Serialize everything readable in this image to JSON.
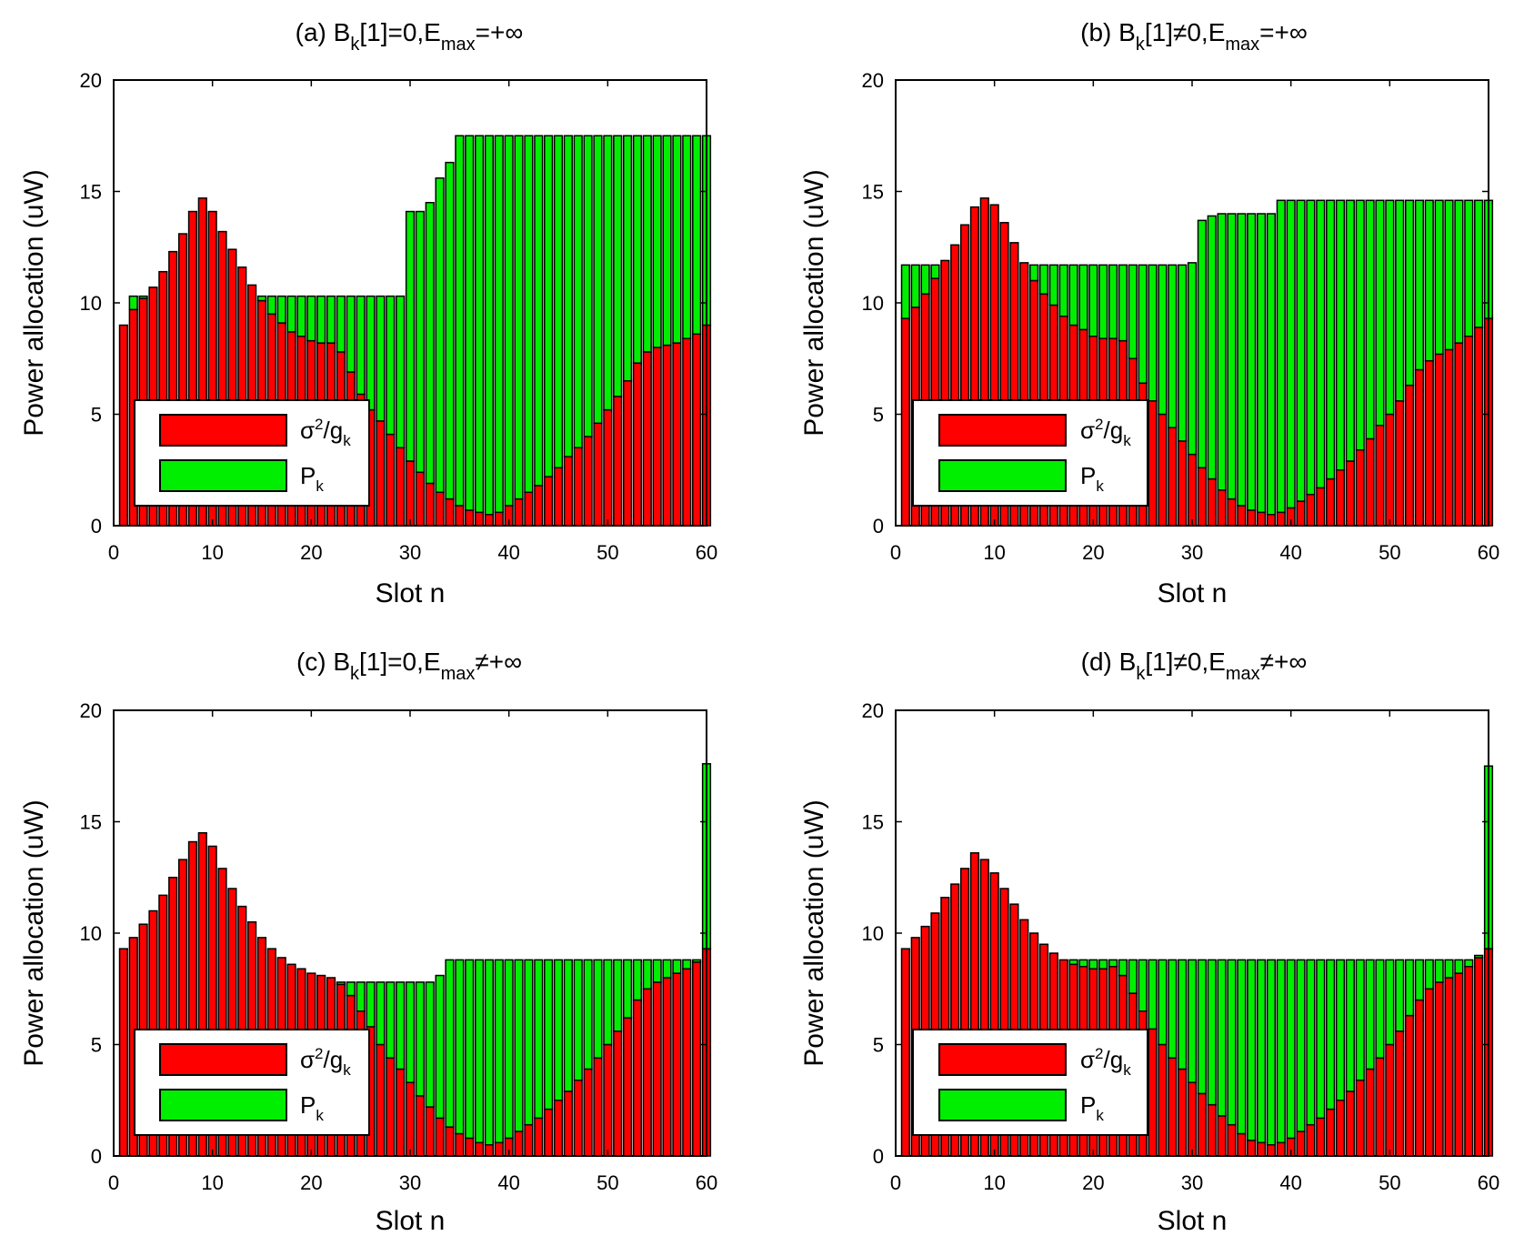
{
  "figure": {
    "panels": [
      {
        "id": "a",
        "title": {
          "prefix": "(a) B",
          "sub1": "k",
          "mid": "[1]=0,E",
          "sub2": "max",
          "suffix": "=+∞"
        }
      },
      {
        "id": "b",
        "title": {
          "prefix": "(b) B",
          "sub1": "k",
          "mid": "[1]≠0,E",
          "sub2": "max",
          "suffix": "=+∞"
        }
      },
      {
        "id": "c",
        "title": {
          "prefix": "(c) B",
          "sub1": "k",
          "mid": "[1]=0,E",
          "sub2": "max",
          "suffix": "≠+∞"
        }
      },
      {
        "id": "d",
        "title": {
          "prefix": "(d) B",
          "sub1": "k",
          "mid": "[1]≠0,E",
          "sub2": "max",
          "suffix": "≠+∞"
        }
      }
    ]
  },
  "chart_data": [
    {
      "type": "bar",
      "stacked": true,
      "title": "(a) B_k[1]=0,E_max=+∞",
      "xlabel": "Slot n",
      "ylabel": "Power allocation (uW)",
      "xlim": [
        0,
        60
      ],
      "ylim": [
        0,
        20
      ],
      "xticks": [
        0,
        10,
        20,
        30,
        40,
        50,
        60
      ],
      "yticks": [
        0,
        5,
        10,
        15,
        20
      ],
      "legend": {
        "position": "lower-left",
        "entries": [
          "σ²/g_k",
          "P_k"
        ]
      },
      "x": [
        1,
        2,
        3,
        4,
        5,
        6,
        7,
        8,
        9,
        10,
        11,
        12,
        13,
        14,
        15,
        16,
        17,
        18,
        19,
        20,
        21,
        22,
        23,
        24,
        25,
        26,
        27,
        28,
        29,
        30,
        31,
        32,
        33,
        34,
        35,
        36,
        37,
        38,
        39,
        40,
        41,
        42,
        43,
        44,
        45,
        46,
        47,
        48,
        49,
        50,
        51,
        52,
        53,
        54,
        55,
        56,
        57,
        58,
        59,
        60
      ],
      "series": [
        {
          "name": "σ²/g_k",
          "color": "#ff0000",
          "values": [
            9.0,
            9.7,
            10.2,
            10.7,
            11.4,
            12.3,
            13.1,
            14.1,
            14.7,
            14.1,
            13.2,
            12.4,
            11.6,
            10.8,
            10.1,
            9.5,
            9.1,
            8.7,
            8.5,
            8.3,
            8.2,
            8.2,
            7.8,
            6.9,
            5.9,
            5.2,
            4.7,
            4.1,
            3.5,
            2.9,
            2.4,
            1.9,
            1.5,
            1.2,
            0.9,
            0.7,
            0.6,
            0.5,
            0.6,
            0.9,
            1.2,
            1.5,
            1.8,
            2.2,
            2.6,
            3.1,
            3.5,
            4.0,
            4.6,
            5.2,
            5.8,
            6.5,
            7.3,
            7.8,
            8.0,
            8.1,
            8.2,
            8.4,
            8.6,
            9.0
          ]
        },
        {
          "name": "P_k",
          "color": "#00ee00",
          "values": [
            0.0,
            0.6,
            0.1,
            0.0,
            0.0,
            0.0,
            0.0,
            0.0,
            0.0,
            0.0,
            0.0,
            0.0,
            0.0,
            0.0,
            0.2,
            0.8,
            1.2,
            1.6,
            1.8,
            2.0,
            2.1,
            2.1,
            2.5,
            3.4,
            4.4,
            5.1,
            5.6,
            6.2,
            6.8,
            11.2,
            11.7,
            12.6,
            14.1,
            15.1,
            16.6,
            16.8,
            16.9,
            17.0,
            16.9,
            16.6,
            16.3,
            16.0,
            15.7,
            15.3,
            14.9,
            14.4,
            14.0,
            13.5,
            12.9,
            12.3,
            11.7,
            11.0,
            10.2,
            9.7,
            9.5,
            9.4,
            9.3,
            9.1,
            8.9,
            8.5
          ]
        }
      ]
    },
    {
      "type": "bar",
      "stacked": true,
      "title": "(b) B_k[1]≠0,E_max=+∞",
      "xlabel": "Slot n",
      "ylabel": "Power allocation (uW)",
      "xlim": [
        0,
        60
      ],
      "ylim": [
        0,
        20
      ],
      "xticks": [
        0,
        10,
        20,
        30,
        40,
        50,
        60
      ],
      "yticks": [
        0,
        5,
        10,
        15,
        20
      ],
      "legend": {
        "position": "lower-left",
        "entries": [
          "σ²/g_k",
          "P_k"
        ]
      },
      "x": [
        1,
        2,
        3,
        4,
        5,
        6,
        7,
        8,
        9,
        10,
        11,
        12,
        13,
        14,
        15,
        16,
        17,
        18,
        19,
        20,
        21,
        22,
        23,
        24,
        25,
        26,
        27,
        28,
        29,
        30,
        31,
        32,
        33,
        34,
        35,
        36,
        37,
        38,
        39,
        40,
        41,
        42,
        43,
        44,
        45,
        46,
        47,
        48,
        49,
        50,
        51,
        52,
        53,
        54,
        55,
        56,
        57,
        58,
        59,
        60
      ],
      "series": [
        {
          "name": "σ²/g_k",
          "color": "#ff0000",
          "values": [
            9.3,
            9.8,
            10.4,
            11.1,
            11.9,
            12.6,
            13.5,
            14.3,
            14.7,
            14.4,
            13.6,
            12.7,
            11.8,
            11.0,
            10.4,
            9.9,
            9.4,
            9.0,
            8.8,
            8.5,
            8.4,
            8.4,
            8.3,
            7.5,
            6.4,
            5.6,
            5.0,
            4.4,
            3.8,
            3.2,
            2.6,
            2.1,
            1.6,
            1.2,
            0.9,
            0.7,
            0.6,
            0.5,
            0.6,
            0.8,
            1.1,
            1.4,
            1.7,
            2.1,
            2.5,
            2.9,
            3.4,
            3.9,
            4.5,
            5.0,
            5.6,
            6.3,
            7.0,
            7.4,
            7.7,
            7.9,
            8.2,
            8.5,
            8.9,
            9.3
          ]
        },
        {
          "name": "P_k",
          "color": "#00ee00",
          "values": [
            2.4,
            1.9,
            1.3,
            0.6,
            0.0,
            0.0,
            0.0,
            0.0,
            0.0,
            0.0,
            0.0,
            0.0,
            0.0,
            0.7,
            1.3,
            1.8,
            2.3,
            2.7,
            2.9,
            3.2,
            3.3,
            3.3,
            3.4,
            4.2,
            5.3,
            6.1,
            6.7,
            7.3,
            7.9,
            8.6,
            11.1,
            11.8,
            12.4,
            12.8,
            13.1,
            13.3,
            13.4,
            13.5,
            14.0,
            13.8,
            13.5,
            13.2,
            12.9,
            12.5,
            12.1,
            11.7,
            11.2,
            10.7,
            10.1,
            9.6,
            9.0,
            8.3,
            7.6,
            7.2,
            6.9,
            6.7,
            6.4,
            6.1,
            5.7,
            5.3
          ]
        }
      ]
    },
    {
      "type": "bar",
      "stacked": true,
      "title": "(c) B_k[1]=0,E_max≠+∞",
      "xlabel": "Slot n",
      "ylabel": "Power allocation (uW)",
      "xlim": [
        0,
        60
      ],
      "ylim": [
        0,
        20
      ],
      "xticks": [
        0,
        10,
        20,
        30,
        40,
        50,
        60
      ],
      "yticks": [
        0,
        5,
        10,
        15,
        20
      ],
      "legend": {
        "position": "lower-left",
        "entries": [
          "σ²/g_k",
          "P_k"
        ]
      },
      "x": [
        1,
        2,
        3,
        4,
        5,
        6,
        7,
        8,
        9,
        10,
        11,
        12,
        13,
        14,
        15,
        16,
        17,
        18,
        19,
        20,
        21,
        22,
        23,
        24,
        25,
        26,
        27,
        28,
        29,
        30,
        31,
        32,
        33,
        34,
        35,
        36,
        37,
        38,
        39,
        40,
        41,
        42,
        43,
        44,
        45,
        46,
        47,
        48,
        49,
        50,
        51,
        52,
        53,
        54,
        55,
        56,
        57,
        58,
        59,
        60
      ],
      "series": [
        {
          "name": "σ²/g_k",
          "color": "#ff0000",
          "values": [
            9.3,
            9.8,
            10.4,
            11.0,
            11.7,
            12.5,
            13.3,
            14.1,
            14.5,
            13.9,
            12.9,
            12.0,
            11.2,
            10.5,
            9.8,
            9.3,
            8.9,
            8.6,
            8.4,
            8.2,
            8.1,
            8.0,
            7.7,
            7.2,
            6.5,
            5.8,
            5.0,
            4.4,
            3.9,
            3.3,
            2.7,
            2.2,
            1.7,
            1.3,
            1.0,
            0.8,
            0.6,
            0.5,
            0.6,
            0.8,
            1.1,
            1.4,
            1.7,
            2.1,
            2.5,
            2.9,
            3.4,
            3.9,
            4.4,
            5.0,
            5.6,
            6.2,
            7.0,
            7.5,
            7.8,
            8.0,
            8.2,
            8.4,
            8.7,
            9.3
          ]
        },
        {
          "name": "P_k",
          "color": "#00ee00",
          "values": [
            0.0,
            0.0,
            0.0,
            0.0,
            0.0,
            0.0,
            0.0,
            0.0,
            0.0,
            0.0,
            0.0,
            0.0,
            0.0,
            0.0,
            0.0,
            0.0,
            0.0,
            0.0,
            0.0,
            0.0,
            0.0,
            0.0,
            0.1,
            0.6,
            1.3,
            2.0,
            2.8,
            3.4,
            3.9,
            4.5,
            5.1,
            5.6,
            6.4,
            7.5,
            7.8,
            8.0,
            8.2,
            8.3,
            8.2,
            8.0,
            7.7,
            7.4,
            7.1,
            6.7,
            6.3,
            5.9,
            5.4,
            4.9,
            4.4,
            3.8,
            3.2,
            2.6,
            1.8,
            1.3,
            1.0,
            0.8,
            0.6,
            0.4,
            0.1,
            8.3
          ]
        }
      ]
    },
    {
      "type": "bar",
      "stacked": true,
      "title": "(d) B_k[1]≠0,E_max≠+∞",
      "xlabel": "Slot n",
      "ylabel": "Power allocation (uW)",
      "xlim": [
        0,
        60
      ],
      "ylim": [
        0,
        20
      ],
      "xticks": [
        0,
        10,
        20,
        30,
        40,
        50,
        60
      ],
      "yticks": [
        0,
        5,
        10,
        15,
        20
      ],
      "legend": {
        "position": "lower-left",
        "entries": [
          "σ²/g_k",
          "P_k"
        ]
      },
      "x": [
        1,
        2,
        3,
        4,
        5,
        6,
        7,
        8,
        9,
        10,
        11,
        12,
        13,
        14,
        15,
        16,
        17,
        18,
        19,
        20,
        21,
        22,
        23,
        24,
        25,
        26,
        27,
        28,
        29,
        30,
        31,
        32,
        33,
        34,
        35,
        36,
        37,
        38,
        39,
        40,
        41,
        42,
        43,
        44,
        45,
        46,
        47,
        48,
        49,
        50,
        51,
        52,
        53,
        54,
        55,
        56,
        57,
        58,
        59,
        60
      ],
      "series": [
        {
          "name": "σ²/g_k",
          "color": "#ff0000",
          "values": [
            9.3,
            9.8,
            10.3,
            10.9,
            11.6,
            12.2,
            12.9,
            13.6,
            13.3,
            12.7,
            12.0,
            11.3,
            10.6,
            10.0,
            9.5,
            9.1,
            8.8,
            8.6,
            8.5,
            8.4,
            8.4,
            8.5,
            8.1,
            7.3,
            6.5,
            5.7,
            5.0,
            4.4,
            3.9,
            3.3,
            2.8,
            2.3,
            1.8,
            1.4,
            1.0,
            0.7,
            0.6,
            0.5,
            0.6,
            0.8,
            1.1,
            1.4,
            1.7,
            2.1,
            2.5,
            2.9,
            3.4,
            3.9,
            4.4,
            5.0,
            5.6,
            6.3,
            7.0,
            7.5,
            7.8,
            8.0,
            8.2,
            8.5,
            8.9,
            9.3
          ]
        },
        {
          "name": "P_k",
          "color": "#00ee00",
          "values": [
            0.0,
            0.0,
            0.0,
            0.0,
            0.0,
            0.0,
            0.0,
            0.0,
            0.0,
            0.0,
            0.0,
            0.0,
            0.0,
            0.0,
            0.0,
            0.0,
            0.0,
            0.2,
            0.3,
            0.4,
            0.4,
            0.3,
            0.7,
            1.5,
            2.3,
            3.1,
            3.8,
            4.4,
            4.9,
            5.5,
            6.0,
            6.5,
            7.0,
            7.4,
            7.8,
            8.1,
            8.2,
            8.3,
            8.2,
            8.0,
            7.7,
            7.4,
            7.1,
            6.7,
            6.3,
            5.9,
            5.4,
            4.9,
            4.4,
            3.8,
            3.2,
            2.5,
            1.8,
            1.3,
            1.0,
            0.8,
            0.6,
            0.3,
            0.1,
            8.2
          ]
        }
      ]
    }
  ]
}
